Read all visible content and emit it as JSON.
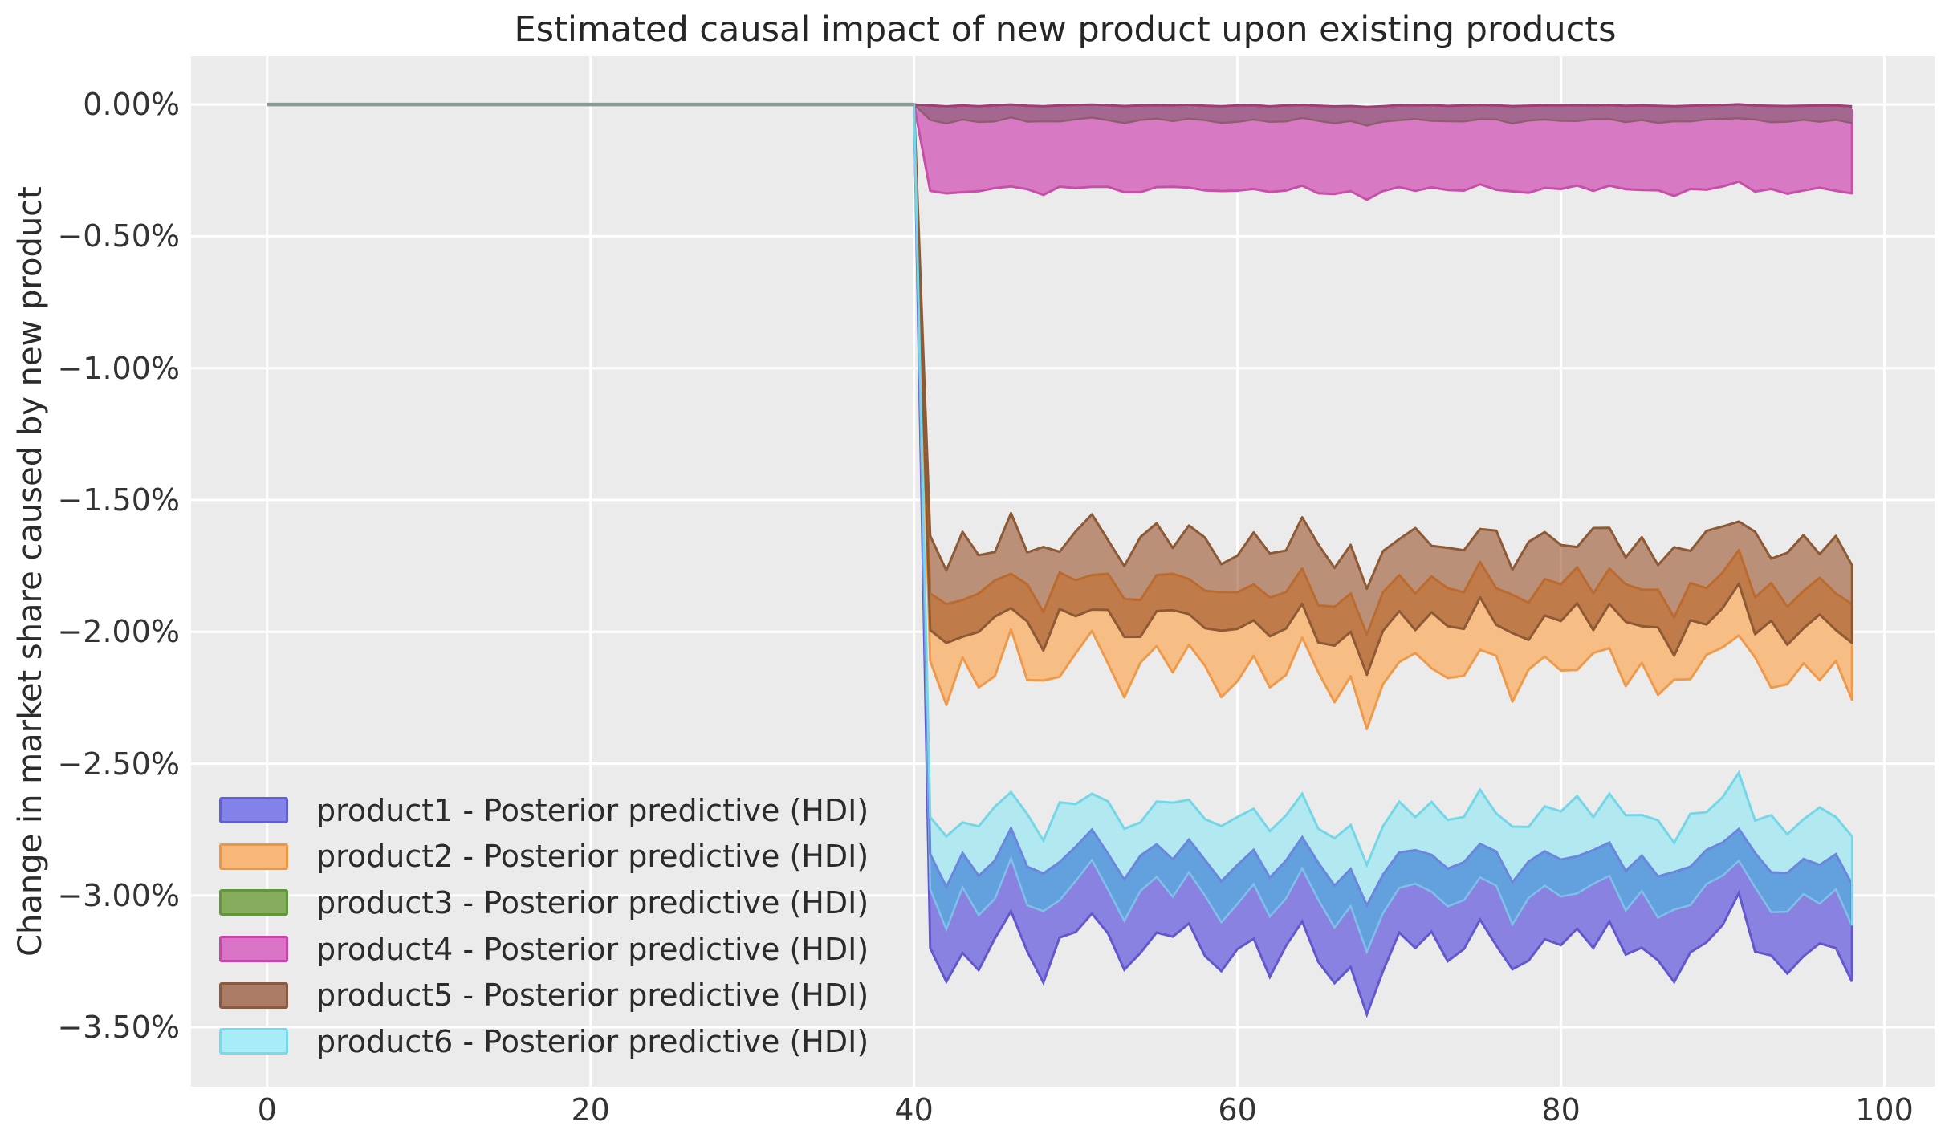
{
  "title": "Estimated causal impact of new product upon existing products",
  "axes": {
    "ylabel": "Change in market share caused by new product",
    "xlabel": "",
    "x_tick_labels": [
      "0",
      "20",
      "40",
      "60",
      "80",
      "100"
    ],
    "y_tick_labels": [
      "0.00%",
      "−0.50%",
      "−1.00%",
      "−1.50%",
      "−2.00%",
      "−2.50%",
      "−3.00%",
      "−3.50%"
    ]
  },
  "legend": {
    "items": [
      {
        "label": "product1 - Posterior predictive (HDI)",
        "swatch_fill": "#8282e8",
        "swatch_border": "#6060d6"
      },
      {
        "label": "product2 - Posterior predictive (HDI)",
        "swatch_fill": "#f8b678",
        "swatch_border": "#ef9440"
      },
      {
        "label": "product3 - Posterior predictive (HDI)",
        "swatch_fill": "#85ad5d",
        "swatch_border": "#61973b"
      },
      {
        "label": "product4 - Posterior predictive (HDI)",
        "swatch_fill": "#da74c6",
        "swatch_border": "#c944a8"
      },
      {
        "label": "product5 - Posterior predictive (HDI)",
        "swatch_fill": "#ab7b66",
        "swatch_border": "#8a5a42"
      },
      {
        "label": "product6 - Posterior predictive (HDI)",
        "swatch_fill": "#a7ecf6",
        "swatch_border": "#72dcec"
      }
    ]
  },
  "colors": {
    "figure_bg": "#ffffff",
    "plot_bg": "#ebebeb",
    "grid": "#ffffff",
    "preline": "#8a9a97",
    "magenta_fill": "#d879c3",
    "magenta_edge": "#c84fa8",
    "plum_fill": "#a4678f",
    "plum_top_edge": "#a23c79",
    "plum_bottom_edge": "#8f5e6e",
    "orange_fill": "#f6bd85",
    "orange_edge": "#ef9a4b",
    "brown_fill": "rgba(146,70,25,0.55)",
    "brown_edge": "#8d5a35",
    "cyan_fill": "#b2e9f1",
    "overlap_fill": "#63a0de",
    "purple_fill": "#8a82e0",
    "cyantop_edge": "#74d6e6",
    "purpletop_edge": "#6b86dc",
    "cyanbot_edge": "#7fc0e8",
    "purple_edge": "#6257ce"
  },
  "chart_data": {
    "type": "area",
    "title": "Estimated causal impact of new product upon existing products",
    "xlabel": "",
    "ylabel": "Change in market share caused by new product",
    "xlim": [
      -4.7,
      103.1
    ],
    "ylim_percent": [
      -3.725,
      0.183
    ],
    "x_ticks": [
      0,
      20,
      40,
      60,
      80,
      100
    ],
    "y_ticks_percent": [
      0,
      -0.5,
      -1.0,
      -1.5,
      -2.0,
      -2.5,
      -3.0,
      -3.5
    ],
    "grid": true,
    "legend_position": "lower left",
    "intervention_x": 40,
    "pre_period_line": {
      "x": [
        0,
        40
      ],
      "y_percent": [
        0,
        0
      ]
    },
    "hdi_bands": {
      "x_start": 40,
      "x_end": 98,
      "anchor_y_percent": 0,
      "shared_wiggle": [
        0.15,
        -0.75,
        0.1,
        -0.55,
        0.25,
        1.0,
        -0.1,
        -0.65,
        0.15,
        0.45,
        0.95,
        0.3,
        -0.45,
        0.1,
        0.35,
        0.2,
        0.7,
        -0.15,
        -0.6,
        0.1,
        0.3,
        -0.7,
        0.2,
        0.6,
        -0.1,
        -0.75,
        -0.45,
        -1.3,
        -0.6,
        0.35,
        0.15,
        0.4,
        -0.35,
        0.1,
        0.55,
        0.15,
        -0.5,
        -0.1,
        0.2,
        0.1,
        0.35,
        0.15,
        0.6,
        -0.2,
        0.1,
        -0.3,
        -0.55,
        -0.15,
        0.25,
        0.55,
        1.2,
        0.1,
        -0.25,
        -0.45,
        -0.15,
        0.05,
        0.15,
        -0.75
      ],
      "jitter_a": [
        0.02,
        -0.03,
        0.04,
        0.01,
        -0.05,
        0.03,
        -0.02,
        0.05,
        -0.04,
        0.01,
        0.03,
        -0.01,
        -0.04,
        0.02,
        0.05,
        -0.03,
        0.01,
        0.04,
        -0.02,
        -0.05,
        0.02,
        0.03,
        -0.04,
        0.05,
        0.01,
        -0.02,
        0.04,
        -0.05,
        0.03,
        -0.01,
        0.05,
        -0.04,
        0.02,
        -0.03,
        0.01,
        0.04,
        -0.05,
        0.02,
        0.03,
        -0.01,
        -0.04,
        0.05,
        0.01,
        -0.03,
        0.02,
        -0.05,
        0.04,
        -0.01,
        0.03,
        0.02,
        -0.02,
        0.04,
        -0.03,
        0.01,
        0.05,
        -0.04,
        0.02,
        -0.01
      ],
      "jitter_b": [
        -0.03,
        0.02,
        -0.05,
        0.04,
        0.01,
        -0.04,
        0.03,
        -0.02,
        0.05,
        -0.01,
        -0.04,
        0.03,
        0.01,
        -0.05,
        0.02,
        0.04,
        -0.03,
        0.01,
        0.05,
        -0.02,
        -0.01,
        0.04,
        -0.03,
        0.02,
        -0.05,
        0.01,
        0.03,
        -0.04,
        0.05,
        0.02,
        -0.03,
        0.01,
        0.04,
        -0.02,
        0.05,
        -0.01,
        0.03,
        -0.04,
        0.02,
        0.01,
        0.05,
        -0.03,
        0.02,
        0.04,
        -0.01,
        0.03,
        -0.05,
        0.04,
        -0.02,
        0.01,
        0.03,
        -0.04,
        0.05,
        -0.02,
        0.01,
        0.04,
        -0.03,
        0.02
      ],
      "series": [
        {
          "name": "product1",
          "legend_label": "product1 - Posterior predictive (HDI)",
          "top": {
            "base": -2.87,
            "amp": 0.11,
            "jitter": "a",
            "jscale": 0.5
          },
          "bottom": {
            "base": -3.21,
            "amp": 0.17,
            "jitter": "b",
            "jscale": 0.5
          },
          "approx_mid_percent": -3.05
        },
        {
          "name": "product2",
          "legend_label": "product2 - Posterior predictive (HDI)",
          "top": {
            "base": -1.84,
            "amp": 0.1,
            "jitter": "b",
            "jscale": 1
          },
          "bottom": {
            "base": -2.15,
            "amp": 0.13,
            "jitter": "a",
            "jscale": 1
          },
          "approx_mid_percent": -2.0
        },
        {
          "name": "product3",
          "legend_label": "product3 - Posterior predictive (HDI)",
          "top": {
            "base": -0.004,
            "amp": 0.004,
            "jitter": "none",
            "jscale": 0
          },
          "bottom": {
            "base": -0.062,
            "amp": 0.01,
            "jitter": "a",
            "jscale": 0.1
          },
          "approx_mid_percent": -0.03
        },
        {
          "name": "product4",
          "legend_label": "product4 - Posterior predictive (HDI)",
          "top": {
            "base": -0.018,
            "amp": 0.006,
            "jitter": "none",
            "jscale": 0
          },
          "bottom": {
            "base": -0.325,
            "amp": 0.022,
            "jitter": "b",
            "jscale": 0.2
          },
          "approx_mid_percent": -0.17
        },
        {
          "name": "product5",
          "legend_label": "product5 - Posterior predictive (HDI)",
          "top": {
            "base": -1.67,
            "amp": 0.09,
            "jitter": "a",
            "jscale": 1
          },
          "bottom": {
            "base": -1.98,
            "amp": 0.11,
            "jitter": "b",
            "jscale": 1
          },
          "approx_mid_percent": -1.82
        },
        {
          "name": "product6",
          "legend_label": "product6 - Posterior predictive (HDI)",
          "top": {
            "base": -2.7,
            "amp": 0.12,
            "jitter": "b",
            "jscale": 0.7
          },
          "bottom": {
            "base": -3.01,
            "amp": 0.13,
            "jitter": "a",
            "jscale": 0.7
          },
          "approx_mid_percent": -2.85
        }
      ]
    }
  }
}
